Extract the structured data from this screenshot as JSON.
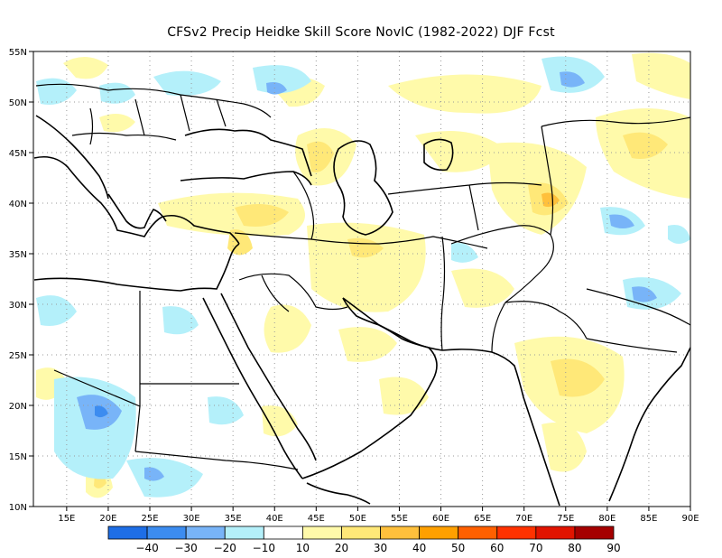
{
  "title": "CFSv2 Precip Heidke Skill Score NovIC (1982-2022) DJF Fcst",
  "map": {
    "lon_range": [
      11,
      90
    ],
    "lat_range": [
      10,
      55
    ],
    "lon_ticks": [
      "15E",
      "20E",
      "25E",
      "30E",
      "35E",
      "40E",
      "45E",
      "50E",
      "55E",
      "60E",
      "65E",
      "70E",
      "75E",
      "80E",
      "85E",
      "90E"
    ],
    "lat_ticks": [
      "10N",
      "15N",
      "20N",
      "25N",
      "30N",
      "35N",
      "40N",
      "45N",
      "50N",
      "55N"
    ],
    "grid": true
  },
  "colorbar": {
    "labels": [
      "−40",
      "−30",
      "−20",
      "−10",
      "10",
      "20",
      "30",
      "40",
      "50",
      "60",
      "70",
      "80",
      "90"
    ],
    "colors": [
      "#1e6ee6",
      "#3c8cf0",
      "#78b4f8",
      "#b4f0fa",
      "#ffffff",
      "#fffaaa",
      "#ffe878",
      "#ffc03c",
      "#ffa000",
      "#ff6000",
      "#ff3200",
      "#e11400",
      "#a50000"
    ]
  },
  "icons": [
    "coastline-lines",
    "country-border-lines"
  ]
}
